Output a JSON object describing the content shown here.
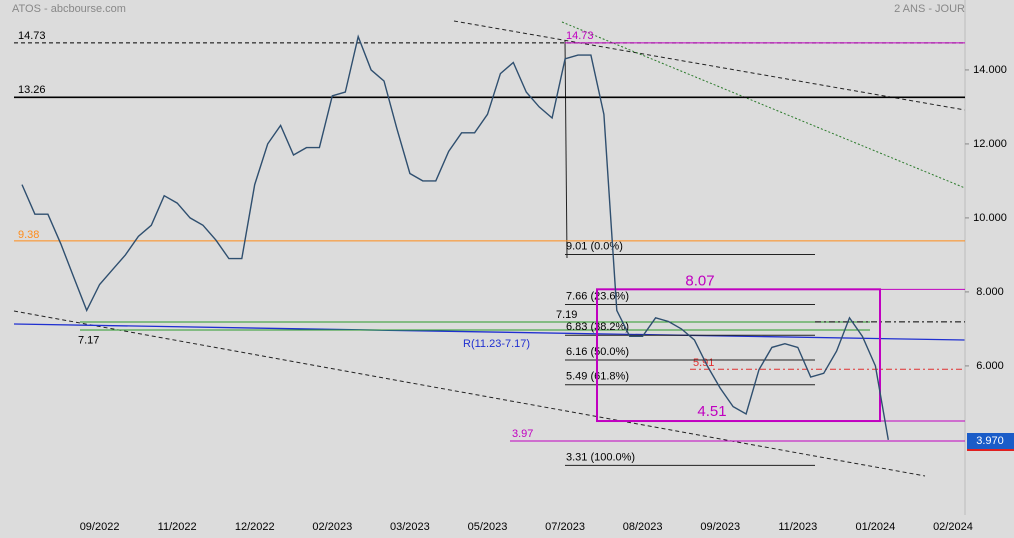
{
  "chart_data": {
    "type": "line",
    "title": "ATOS - abcbourse.com",
    "subtitle": "2 ANS - JOUR",
    "categories": [
      null,
      null,
      null,
      null,
      null,
      null,
      "09/2022",
      null,
      null,
      null,
      null,
      null,
      "11/2022",
      null,
      null,
      null,
      null,
      null,
      "12/2022",
      null,
      null,
      null,
      null,
      null,
      "02/2023",
      null,
      null,
      null,
      null,
      null,
      "03/2023",
      null,
      null,
      null,
      null,
      null,
      "05/2023",
      null,
      null,
      null,
      null,
      null,
      "07/2023",
      null,
      null,
      null,
      null,
      null,
      "08/2023",
      null,
      null,
      null,
      null,
      null,
      "09/2023",
      null,
      null,
      null,
      null,
      null,
      "11/2023",
      null,
      null,
      null,
      null,
      null,
      "01/2024",
      null,
      null,
      null,
      null,
      null,
      "02/2024"
    ],
    "series": [
      {
        "color": "#2f4f6f",
        "values": [
          10.9,
          10.1,
          10.1,
          9.3,
          8.4,
          7.5,
          8.2,
          8.6,
          9.0,
          9.5,
          9.8,
          10.6,
          10.4,
          10.0,
          9.8,
          9.4,
          8.9,
          8.9,
          10.9,
          12.0,
          12.5,
          11.7,
          11.9,
          11.9,
          13.3,
          13.4,
          14.9,
          14.0,
          13.7,
          12.4,
          11.2,
          11.0,
          11.0,
          11.8,
          12.3,
          12.3,
          12.8,
          13.9,
          14.2,
          13.4,
          13.0,
          12.7,
          14.3,
          14.4,
          14.4,
          12.8,
          7.5,
          6.8,
          6.8,
          7.3,
          7.2,
          7.0,
          6.7,
          6.0,
          5.4,
          4.9,
          4.7,
          5.9,
          6.5,
          6.6,
          6.5,
          5.7,
          5.8,
          6.4,
          7.3,
          6.8,
          6.0,
          4.0,
          null,
          null,
          null,
          null,
          null
        ]
      }
    ],
    "ylim": [
      1.97,
      15.89
    ],
    "yticks": [
      {
        "value": 14,
        "label": "14.000"
      },
      {
        "value": 12,
        "label": "12.000"
      },
      {
        "value": 10,
        "label": "10.000"
      },
      {
        "value": 8,
        "label": "8.000"
      },
      {
        "value": 6,
        "label": "6.000"
      }
    ],
    "levels": [
      {
        "value": 14.73,
        "color": "#000000"
      },
      {
        "value": 13.26,
        "color": "#000000"
      },
      {
        "value": 9.38,
        "color": "#ff8c1a"
      },
      {
        "value": 7.19,
        "color": "#000000"
      },
      {
        "value": 5.91,
        "color": "#e03030"
      },
      {
        "value": 3.97,
        "color": "#c000c0"
      },
      {
        "value": 14.73,
        "color": "#c000c0"
      }
    ],
    "fibonacci": [
      {
        "value": 9.01,
        "label": "9.01  (0.0%)"
      },
      {
        "value": 7.66,
        "label": "7.66  (23.6%)"
      },
      {
        "value": 6.83,
        "label": "6.83  (38.2%)"
      },
      {
        "value": 6.16,
        "label": "6.16  (50.0%)"
      },
      {
        "value": 5.49,
        "label": "5.49  (61.8%)"
      },
      {
        "value": 3.31,
        "label": "3.31  (100.0%)"
      }
    ],
    "box": {
      "top": 8.07,
      "bottom": 4.51,
      "color": "#c000c0"
    },
    "low_label": 7.17,
    "channel_label": "R(11.23-7.17)",
    "last_price": {
      "value": 3.97,
      "label": "3.970"
    }
  }
}
